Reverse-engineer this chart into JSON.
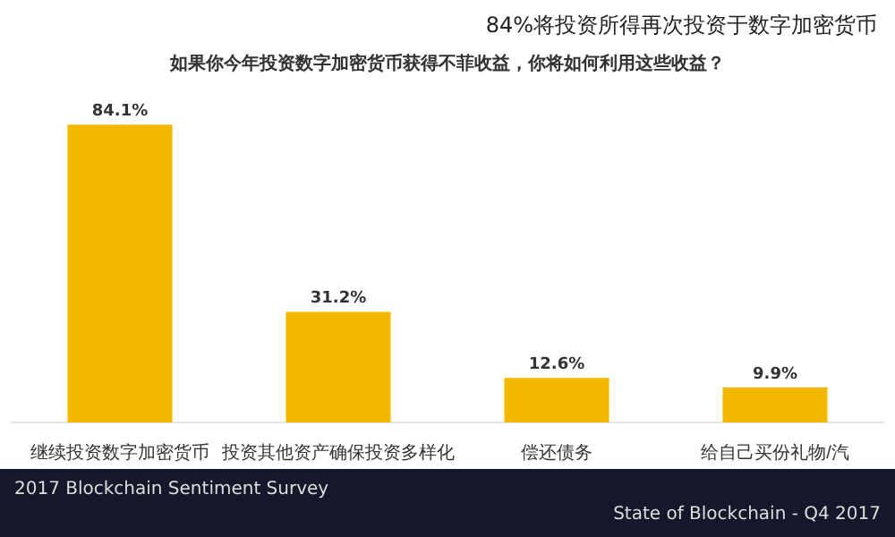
{
  "chart_data": {
    "type": "bar",
    "title": "如果你今年投资数字加密货币获得不菲收益，你将如何利用这些收益？",
    "categories": [
      "继续投资数字加密货币",
      "投资其他资产确保投资多样化",
      "偿还债务",
      "给自己买份礼物/汽"
    ],
    "values": [
      84.1,
      31.2,
      12.6,
      9.9
    ],
    "color": "#f5b800",
    "value_labels": [
      "84.1%",
      "31.2%",
      "12.6%",
      "9.9%"
    ],
    "annotations": [
      "84%将投资所得再次投资于数字加密货币",
      "2017 Blockchain Sentiment Survey",
      "State of Blockchain - Q4 2017"
    ]
  }
}
